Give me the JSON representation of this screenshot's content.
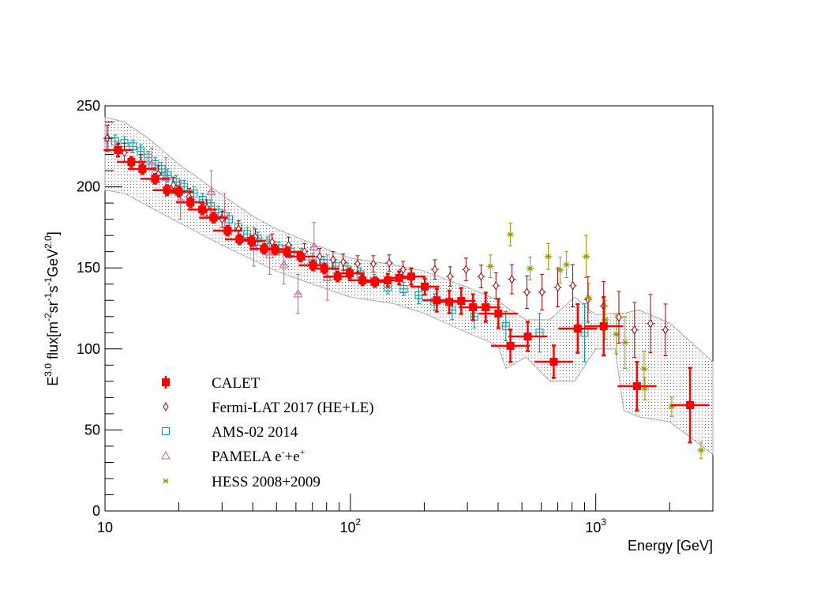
{
  "chart_data": {
    "type": "scatter",
    "title": "",
    "xlabel": "Energy [GeV]",
    "ylabel": {
      "base": "E",
      "exp": "3.0",
      "text": " flux[m",
      "u1": "-2",
      "t2": "sr",
      "u2": "-1",
      "t3": "s",
      "u3": "-1",
      "t4": "GeV",
      "u4": "2.0",
      "t5": "]"
    },
    "xscale": "log",
    "xlim": [
      10,
      3000
    ],
    "ylim": [
      0,
      250
    ],
    "grid": false,
    "legend_position": "bottom-left",
    "x_tick_labels": [
      {
        "base": "10",
        "exp": "",
        "value": 10
      },
      {
        "base": "10",
        "exp": "2",
        "value": 100
      },
      {
        "base": "10",
        "exp": "3",
        "value": 1000
      }
    ],
    "y_tick_labels": [
      "0",
      "50",
      "100",
      "150",
      "200",
      "250"
    ],
    "band": {
      "color": "#888888",
      "points": [
        [
          10,
          198,
          243
        ],
        [
          12,
          196,
          240
        ],
        [
          15,
          188,
          230
        ],
        [
          20,
          178,
          214
        ],
        [
          30,
          164,
          195
        ],
        [
          40,
          155,
          182
        ],
        [
          50,
          148,
          174
        ],
        [
          70,
          140,
          165
        ],
        [
          100,
          132,
          156
        ],
        [
          150,
          128,
          152
        ],
        [
          200,
          122,
          148
        ],
        [
          300,
          110,
          138
        ],
        [
          400,
          102,
          130
        ],
        [
          430,
          88,
          126
        ],
        [
          520,
          95,
          118
        ],
        [
          650,
          80,
          118
        ],
        [
          820,
          80,
          132
        ],
        [
          1000,
          100,
          121
        ],
        [
          1200,
          100,
          122
        ],
        [
          1300,
          62,
          122
        ],
        [
          1500,
          58,
          124
        ],
        [
          2000,
          55,
          116
        ],
        [
          3000,
          35,
          92
        ]
      ]
    },
    "series": [
      {
        "name": "CALET",
        "marker": "filled-square",
        "color": "#ff0000",
        "x": [
          11.3,
          12.8,
          14.2,
          16.0,
          17.9,
          20.0,
          22.3,
          24.9,
          27.7,
          31.6,
          35.3,
          39.5,
          44.5,
          49.4,
          55.2,
          62.6,
          70.5,
          78.3,
          88.7,
          99.3,
          112,
          126,
          142,
          158,
          177,
          201,
          225,
          253,
          283,
          316,
          356,
          401,
          449,
          528,
          674,
          844,
          1077,
          1472,
          2421
        ],
        "y": [
          222.7,
          215.4,
          211,
          205,
          198,
          197,
          190.5,
          186,
          181,
          173,
          167.6,
          166.7,
          161.8,
          161.3,
          159.8,
          157,
          151.6,
          149.6,
          144.7,
          146.7,
          142.3,
          141.3,
          142.3,
          143.8,
          144.7,
          138.4,
          130,
          129,
          129.6,
          125.7,
          125.7,
          121.8,
          101.9,
          107.7,
          92.1,
          112.6,
          114,
          77,
          65.3
        ],
        "yerr": [
          4,
          3,
          3,
          3,
          3,
          3,
          3,
          3,
          3,
          3,
          3,
          3,
          3,
          3,
          3,
          3,
          3,
          3,
          3,
          3,
          3,
          3,
          4,
          4,
          5,
          5,
          7,
          7,
          8,
          8,
          9,
          9,
          10,
          9,
          10,
          15,
          18,
          15,
          23
        ]
      },
      {
        "name": "Fermi-LAT 2017 (HE+LE)",
        "marker": "open-diamond",
        "color": "#990000",
        "x": [
          10.2,
          12,
          14,
          16.5,
          19,
          22,
          26,
          30,
          35,
          41,
          48,
          56,
          65,
          75,
          85,
          93.5,
          107,
          124,
          144,
          164,
          221,
          255,
          296,
          341,
          392,
          455,
          524,
          604,
          700,
          806,
          929,
          1077,
          1242,
          1439,
          1671,
          1923
        ],
        "y": [
          230,
          221,
          215,
          208,
          201,
          194,
          187,
          180,
          174,
          169,
          166,
          164,
          160,
          157,
          155,
          153.5,
          152.5,
          152.5,
          153,
          149,
          149,
          144.7,
          149,
          144.7,
          139,
          143,
          135,
          135,
          138,
          139,
          130.5,
          126.5,
          119.5,
          111.7,
          115.6,
          111.7
        ],
        "yerr": [
          8,
          6,
          5,
          5,
          5,
          5,
          5,
          5,
          5,
          5,
          5,
          5,
          5,
          5,
          5,
          5,
          5,
          5,
          5,
          5,
          6,
          6,
          7,
          7,
          8,
          9,
          10,
          11,
          12,
          13,
          14,
          15,
          16,
          17,
          18,
          16
        ]
      },
      {
        "name": "AMS-02 2014",
        "marker": "open-square",
        "color": "#009999",
        "x": [
          11,
          12,
          13,
          14,
          15,
          16,
          17,
          18,
          19.5,
          21,
          23,
          25,
          27,
          29,
          32,
          35,
          38,
          42,
          46,
          51,
          57,
          63,
          70,
          78,
          87,
          97,
          110,
          125,
          142,
          165,
          190,
          220,
          260,
          320,
          430,
          590,
          900
        ],
        "y": [
          228,
          227,
          225,
          222,
          218,
          214,
          211,
          207,
          203,
          200,
          196,
          192,
          188,
          184,
          180,
          175,
          171,
          168,
          165,
          162,
          160,
          158,
          155,
          153,
          151,
          149,
          146,
          142,
          138,
          137,
          133,
          129,
          124,
          120,
          114,
          110,
          110
        ],
        "yerr": [
          4,
          4,
          4,
          4,
          4,
          4,
          4,
          4,
          4,
          4,
          4,
          4,
          4,
          4,
          4,
          4,
          4,
          4,
          4,
          4,
          4,
          4,
          4,
          4,
          4,
          4,
          4,
          4,
          4,
          4,
          5,
          5,
          6,
          7,
          9,
          12,
          18
        ]
      },
      {
        "name": "PAMELA e⁻+e⁺",
        "label_base": "PAMELA e",
        "label_sup1": "-",
        "label_mid": "+e",
        "label_sup2": "+",
        "marker": "open-triangle",
        "color": "#bb6699",
        "x": [
          10.3,
          15.5,
          17.7,
          20.3,
          27.1,
          30.7,
          40.4,
          46.9,
          53.6,
          61.2,
          71.1,
          80.6
        ],
        "y": [
          230,
          214,
          206,
          192,
          197,
          184,
          163,
          158,
          152,
          134,
          163,
          144
        ],
        "yerr": [
          8,
          10,
          12,
          12,
          13,
          12,
          12,
          12,
          12,
          12,
          15,
          14
        ]
      },
      {
        "name": "HESS 2008+2009",
        "marker": "star",
        "color": "#999900",
        "x": [
          372,
          449,
          540,
          640,
          716,
          760,
          914,
          935,
          1094,
          1214,
          1316,
          1574,
          1585,
          2040,
          2686
        ],
        "y": [
          151,
          170.6,
          149.6,
          157,
          148.6,
          152,
          157,
          131.6,
          118,
          109,
          104,
          87.7,
          75.5,
          64.3,
          37.5
        ],
        "yerr": [
          7,
          7,
          7,
          8,
          8,
          8,
          13,
          9,
          12,
          12,
          16,
          11,
          7,
          6,
          5
        ]
      }
    ]
  }
}
